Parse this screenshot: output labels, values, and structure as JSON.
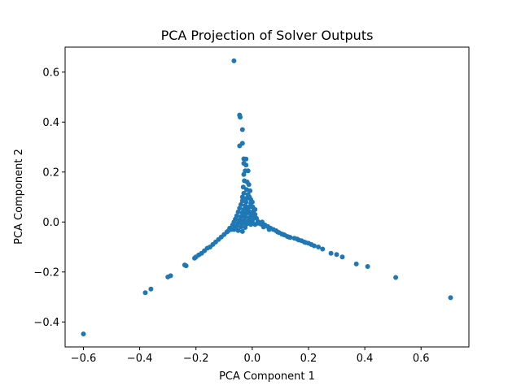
{
  "chart_data": {
    "type": "scatter",
    "title": "PCA Projection of Solver Outputs",
    "xlabel": "PCA Component 1",
    "ylabel": "PCA Component 2",
    "xlim": [
      -0.665,
      0.77
    ],
    "ylim": [
      -0.5,
      0.7
    ],
    "xticks": [
      -0.6,
      -0.4,
      -0.2,
      0.0,
      0.2,
      0.4,
      0.6
    ],
    "xtick_labels": [
      "−0.6",
      "−0.4",
      "−0.2",
      "0.0",
      "0.2",
      "0.4",
      "0.6"
    ],
    "yticks": [
      -0.4,
      -0.2,
      0.0,
      0.2,
      0.4,
      0.6
    ],
    "ytick_labels": [
      "−0.4",
      "−0.2",
      "0.0",
      "0.2",
      "0.4",
      "0.6"
    ],
    "grid": false,
    "marker_color": "#1f77b4",
    "points": [
      [
        -0.065,
        0.645
      ],
      [
        -0.045,
        0.428
      ],
      [
        -0.043,
        0.42
      ],
      [
        -0.035,
        0.37
      ],
      [
        -0.045,
        0.305
      ],
      [
        -0.035,
        0.315
      ],
      [
        -0.03,
        0.253
      ],
      [
        -0.022,
        0.252
      ],
      [
        -0.03,
        0.235
      ],
      [
        -0.022,
        0.228
      ],
      [
        -0.025,
        0.205
      ],
      [
        -0.03,
        0.19
      ],
      [
        -0.015,
        0.205
      ],
      [
        -0.028,
        0.165
      ],
      [
        -0.018,
        0.16
      ],
      [
        -0.012,
        0.15
      ],
      [
        -0.032,
        0.14
      ],
      [
        -0.02,
        0.13
      ],
      [
        -0.008,
        0.125
      ],
      [
        -0.03,
        0.115
      ],
      [
        -0.015,
        0.11
      ],
      [
        -0.035,
        0.1
      ],
      [
        -0.02,
        0.095
      ],
      [
        -0.005,
        0.09
      ],
      [
        -0.035,
        0.085
      ],
      [
        -0.022,
        0.08
      ],
      [
        -0.005,
        0.075
      ],
      [
        -0.04,
        0.07
      ],
      [
        -0.025,
        0.065
      ],
      [
        -0.01,
        0.06
      ],
      [
        0.002,
        0.06
      ],
      [
        -0.045,
        0.055
      ],
      [
        -0.03,
        0.05
      ],
      [
        -0.015,
        0.048
      ],
      [
        0.005,
        0.045
      ],
      [
        -0.05,
        0.04
      ],
      [
        -0.035,
        0.038
      ],
      [
        -0.02,
        0.035
      ],
      [
        -0.005,
        0.032
      ],
      [
        0.01,
        0.03
      ],
      [
        -0.055,
        0.025
      ],
      [
        -0.04,
        0.022
      ],
      [
        -0.025,
        0.02
      ],
      [
        -0.01,
        0.018
      ],
      [
        0.005,
        0.015
      ],
      [
        0.015,
        0.015
      ],
      [
        -0.06,
        0.012
      ],
      [
        -0.045,
        0.008
      ],
      [
        -0.03,
        0.006
      ],
      [
        -0.015,
        0.004
      ],
      [
        0.0,
        0.003
      ],
      [
        0.02,
        0.002
      ],
      [
        0.035,
        0.0
      ],
      [
        -0.065,
        0.0
      ],
      [
        -0.05,
        -0.004
      ],
      [
        -0.035,
        -0.006
      ],
      [
        -0.02,
        -0.008
      ],
      [
        -0.005,
        -0.01
      ],
      [
        0.01,
        -0.01
      ],
      [
        0.03,
        -0.008
      ],
      [
        0.045,
        -0.012
      ],
      [
        -0.07,
        -0.012
      ],
      [
        -0.055,
        -0.016
      ],
      [
        -0.04,
        -0.02
      ],
      [
        -0.025,
        -0.022
      ],
      [
        0.055,
        -0.018
      ],
      [
        0.065,
        -0.025
      ],
      [
        0.075,
        -0.03
      ],
      [
        -0.08,
        -0.025
      ],
      [
        -0.065,
        -0.03
      ],
      [
        -0.05,
        -0.034
      ],
      [
        -0.035,
        -0.038
      ],
      [
        0.085,
        -0.035
      ],
      [
        0.095,
        -0.042
      ],
      [
        0.105,
        -0.048
      ],
      [
        0.115,
        -0.052
      ],
      [
        0.125,
        -0.058
      ],
      [
        0.135,
        -0.062
      ],
      [
        0.15,
        -0.065
      ],
      [
        0.165,
        -0.072
      ],
      [
        0.175,
        -0.075
      ],
      [
        0.185,
        -0.08
      ],
      [
        0.2,
        -0.085
      ],
      [
        0.22,
        -0.095
      ],
      [
        0.235,
        -0.1
      ],
      [
        0.25,
        -0.108
      ],
      [
        0.28,
        -0.125
      ],
      [
        0.3,
        -0.13
      ],
      [
        0.32,
        -0.14
      ],
      [
        0.37,
        -0.168
      ],
      [
        0.41,
        -0.178
      ],
      [
        0.51,
        -0.222
      ],
      [
        0.705,
        -0.303
      ],
      [
        -0.09,
        -0.04
      ],
      [
        -0.1,
        -0.05
      ],
      [
        -0.11,
        -0.06
      ],
      [
        -0.12,
        -0.07
      ],
      [
        -0.13,
        -0.08
      ],
      [
        -0.14,
        -0.09
      ],
      [
        -0.15,
        -0.1
      ],
      [
        -0.16,
        -0.105
      ],
      [
        -0.17,
        -0.115
      ],
      [
        -0.18,
        -0.125
      ],
      [
        -0.19,
        -0.132
      ],
      [
        -0.2,
        -0.14
      ],
      [
        -0.205,
        -0.145
      ],
      [
        -0.235,
        -0.175
      ],
      [
        -0.24,
        -0.172
      ],
      [
        -0.29,
        -0.215
      ],
      [
        -0.3,
        -0.22
      ],
      [
        -0.36,
        -0.268
      ],
      [
        -0.38,
        -0.283
      ],
      [
        -0.6,
        -0.448
      ],
      [
        0.04,
        -0.02
      ],
      [
        0.06,
        -0.03
      ],
      [
        0.02,
        -0.005
      ],
      [
        0.0,
        0.02
      ],
      [
        -0.01,
        0.04
      ],
      [
        -0.02,
        0.06
      ],
      [
        -0.025,
        0.09
      ],
      [
        -0.01,
        0.1
      ],
      [
        0.0,
        0.08
      ],
      [
        0.01,
        0.05
      ],
      [
        -0.03,
        0.03
      ],
      [
        -0.06,
        -0.02
      ],
      [
        -0.075,
        -0.03
      ],
      [
        -0.085,
        -0.035
      ],
      [
        0.09,
        -0.04
      ],
      [
        0.11,
        -0.05
      ],
      [
        0.13,
        -0.06
      ],
      [
        0.16,
        -0.068
      ],
      [
        0.19,
        -0.082
      ],
      [
        0.21,
        -0.09
      ]
    ]
  }
}
